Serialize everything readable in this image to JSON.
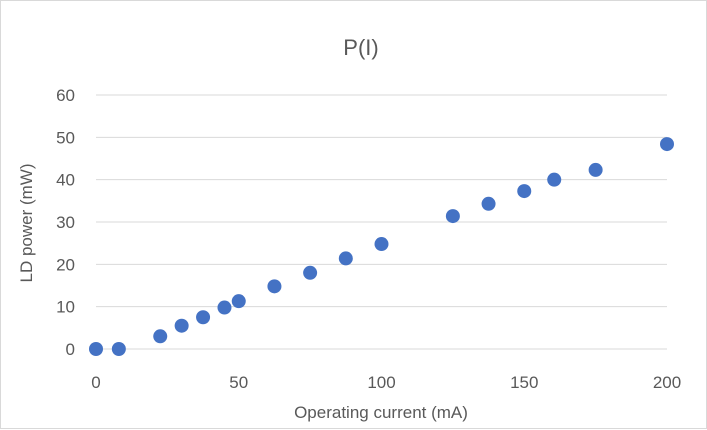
{
  "chart_data": {
    "type": "scatter",
    "title": "P(I)",
    "xlabel": "Operating current (mA)",
    "ylabel": "LD power (mW)",
    "xlim": [
      0,
      200
    ],
    "ylim": [
      0,
      60
    ],
    "xticks": [
      0,
      50,
      100,
      150,
      200
    ],
    "yticks": [
      0,
      10,
      20,
      30,
      40,
      50,
      60
    ],
    "grid": "horizontal",
    "legend": "none",
    "marker_color": "#4472C4",
    "gridline_color": "#d9d9d9",
    "series": [
      {
        "x": [
          0,
          8,
          22.5,
          30,
          37.5,
          45,
          50,
          62.5,
          75,
          87.5,
          100,
          125,
          137.5,
          150,
          160.5,
          175,
          200
        ],
        "y": [
          0,
          0,
          3,
          5.5,
          7.5,
          9.8,
          11.3,
          14.8,
          18,
          21.4,
          24.8,
          31.4,
          34.3,
          37.3,
          40,
          42.3,
          48.4
        ]
      }
    ]
  }
}
